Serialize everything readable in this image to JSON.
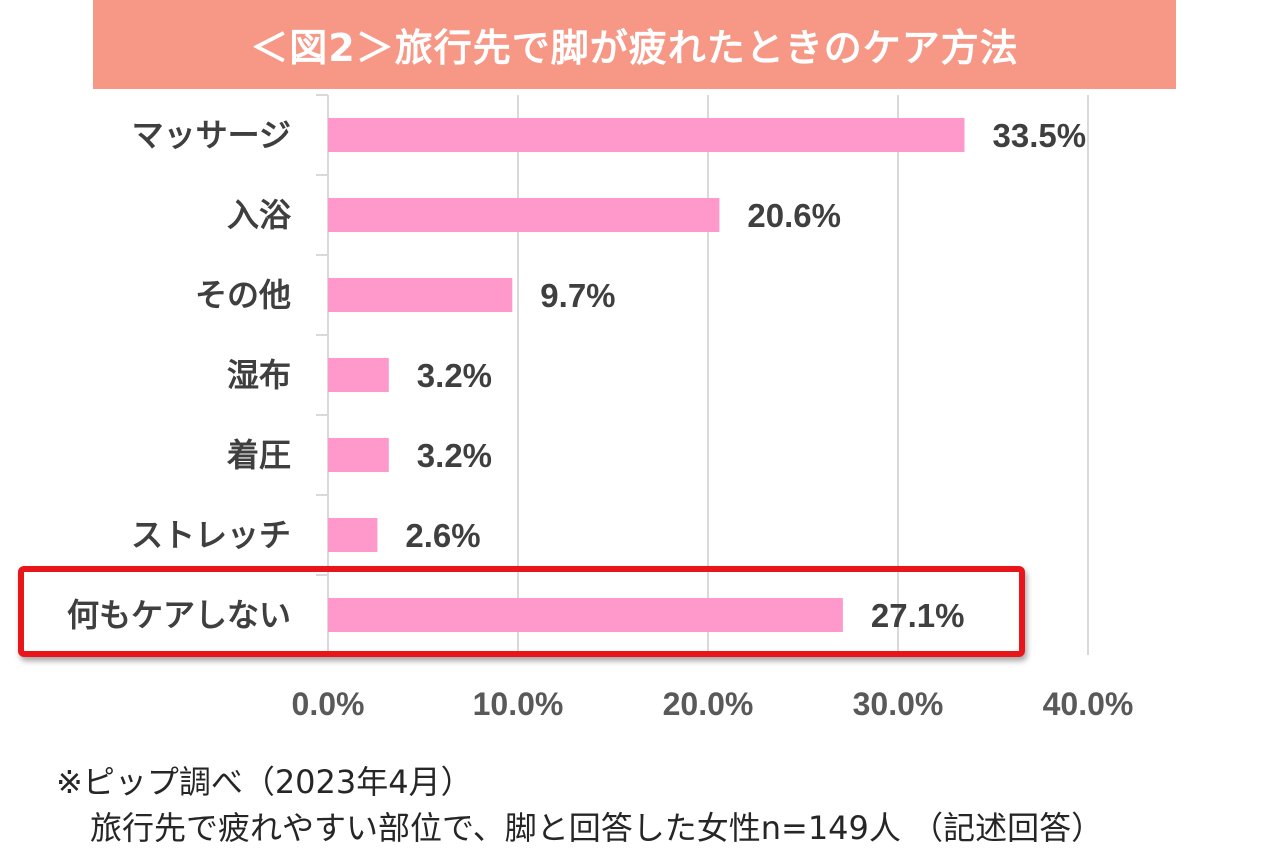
{
  "chart_data": {
    "type": "bar",
    "orientation": "horizontal",
    "title": "＜図2＞旅行先で脚が疲れたときのケア方法",
    "categories": [
      "マッサージ",
      "入浴",
      "その他",
      "湿布",
      "着圧",
      "ストレッチ",
      "何もケアしない"
    ],
    "values": [
      33.5,
      20.6,
      9.7,
      3.2,
      3.2,
      2.6,
      27.1
    ],
    "value_labels": [
      "33.5%",
      "20.6%",
      "9.7%",
      "3.2%",
      "3.2%",
      "2.6%",
      "27.1%"
    ],
    "xlim": [
      0,
      40
    ],
    "x_ticks": [
      "0.0%",
      "10.0%",
      "20.0%",
      "30.0%",
      "40.0%"
    ],
    "x_tick_values": [
      0,
      10,
      20,
      30,
      40
    ],
    "grid": true,
    "highlighted_category": "何もケアしない",
    "colors": {
      "bar": "#ff99cc",
      "title_bg": "#f79886",
      "highlight": "#e8161b",
      "grid": "#d9d9d9"
    }
  },
  "notes": {
    "line1": "※ピップ調べ（2023年4月）",
    "line2": "旅行先で疲れやすい部位で、脚と回答した女性n=149人 （記述回答）"
  }
}
